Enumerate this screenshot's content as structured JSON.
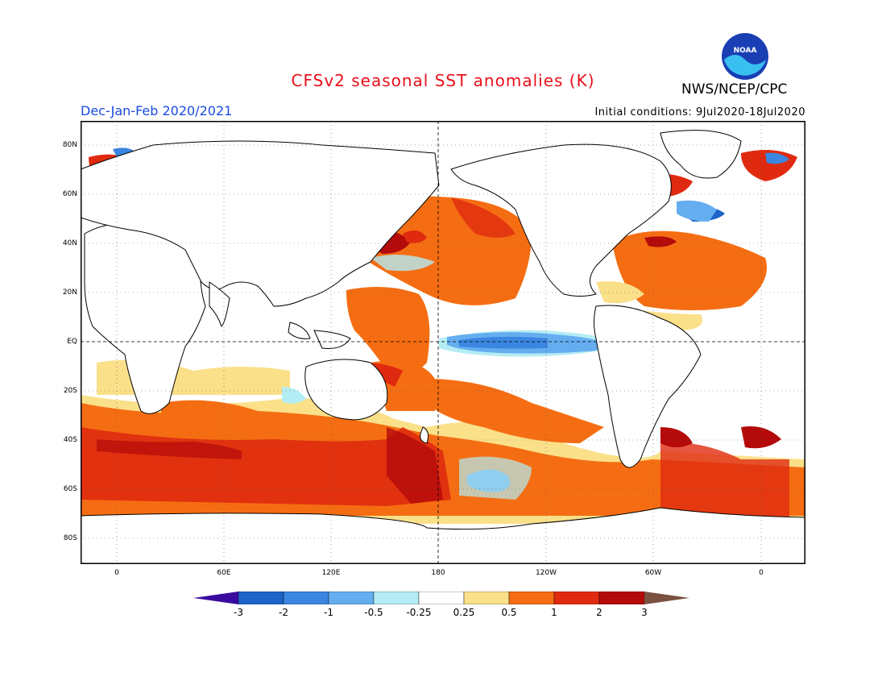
{
  "title": "CFSv2 seasonal SST anomalies (K)",
  "organization": "NWS/NCEP/CPC",
  "logo_text": "NOAA",
  "season": "Dec-Jan-Feb 2020/2021",
  "initial_conditions": "Initial conditions: 9Jul2020-18Jul2020",
  "lat_labels": [
    "80N",
    "60N",
    "40N",
    "20N",
    "EQ",
    "20S",
    "40S",
    "60S",
    "80S"
  ],
  "lon_labels": [
    "0",
    "60E",
    "120E",
    "180",
    "120W",
    "60W",
    "0"
  ],
  "colorbar": {
    "ticks": [
      "-3",
      "-2",
      "-1",
      "-0.5",
      "-0.25",
      "0.25",
      "0.5",
      "1",
      "2",
      "3"
    ],
    "colors": [
      "#3a0a9e",
      "#1c64c8",
      "#3a86e0",
      "#64aef0",
      "#b4ecf4",
      "#ffffff",
      "#fbe08a",
      "#f56d12",
      "#e02a10",
      "#b40a0a",
      "#7a5040"
    ]
  },
  "colors": {
    "title": "#e8101a",
    "season": "#1a4be0",
    "land": "#ffffff",
    "coast": "#000000"
  }
}
